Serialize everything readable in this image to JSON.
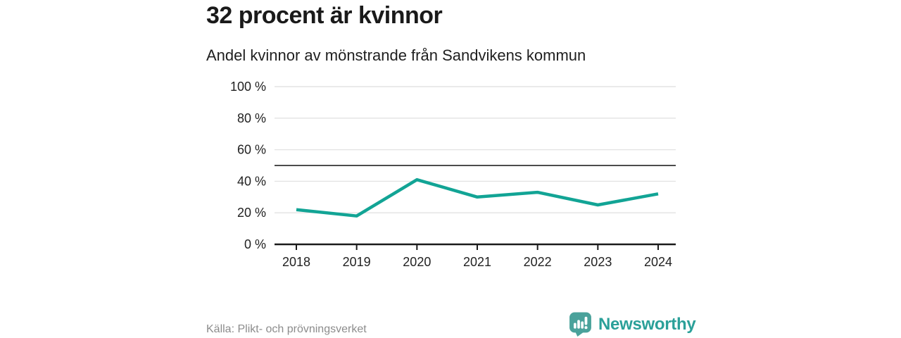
{
  "header": {
    "title": "32 procent är kvinnor",
    "subtitle": "Andel kvinnor av mönstrande från Sandvikens kommun"
  },
  "footer": {
    "source": "Källa: Plikt- och prövningsverket",
    "brand": "Newsworthy"
  },
  "colors": {
    "line": "#12a495",
    "grid": "#e3e3e3",
    "reference": "#4c4c4c",
    "axis": "#1a1a1a",
    "tick_label": "#222222",
    "text": "#1a1a1a",
    "source_text": "#8c8c8c",
    "brand_teal": "#2ba099",
    "badge_teal": "#4aa29b"
  },
  "chart_data": {
    "type": "line",
    "categories": [
      "2018",
      "2019",
      "2020",
      "2021",
      "2022",
      "2023",
      "2024"
    ],
    "values": [
      22,
      18,
      41,
      30,
      33,
      25,
      32
    ],
    "title": "32 procent är kvinnor",
    "subtitle": "Andel kvinnor av mönstrande från Sandvikens kommun",
    "xlabel": "",
    "ylabel": "",
    "ylim": [
      0,
      100
    ],
    "yticks": [
      0,
      20,
      40,
      60,
      80,
      100
    ],
    "ytick_suffix": " %",
    "reference_line": 50,
    "grid": true,
    "legend": false
  }
}
